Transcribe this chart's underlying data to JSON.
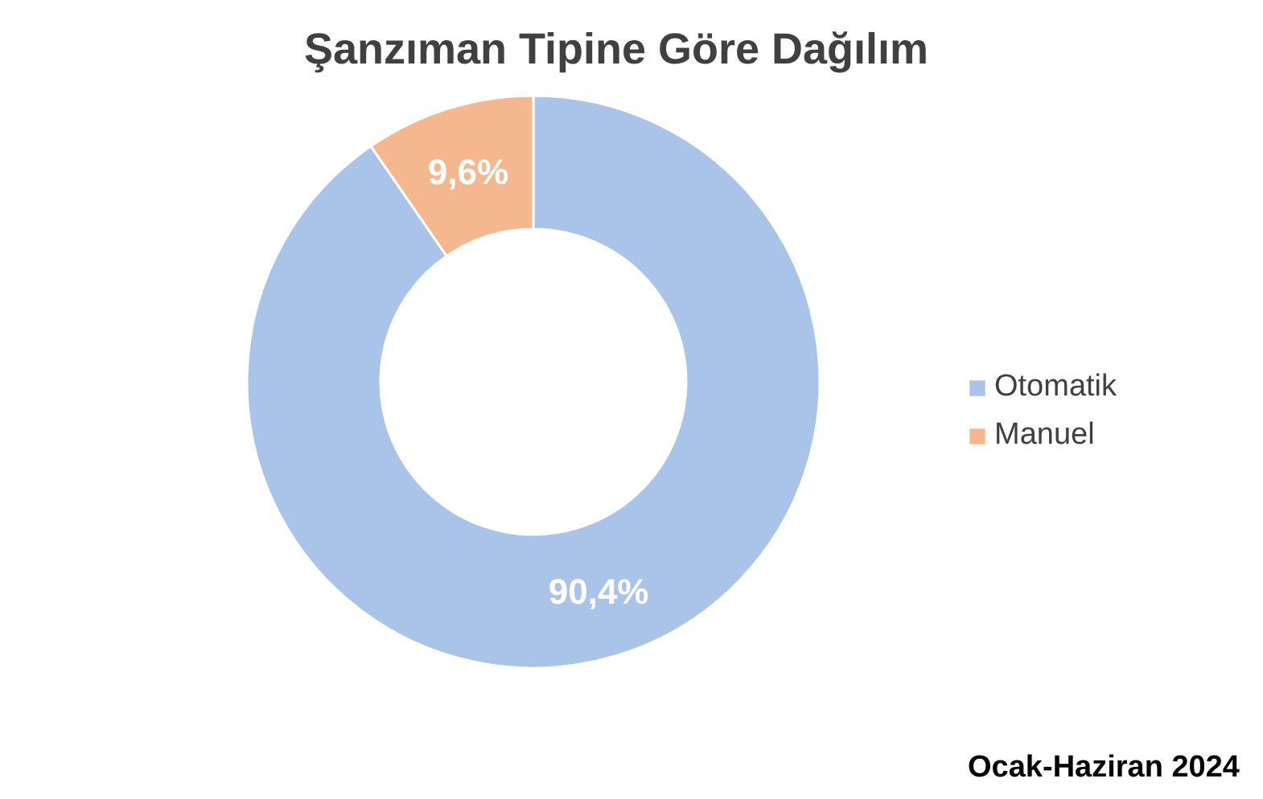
{
  "chart_data": {
    "type": "donut",
    "title": "Şanzıman Tipine Göre Dağılım",
    "categories": [
      "Otomatik",
      "Manuel"
    ],
    "values": [
      90.4,
      9.6
    ],
    "colors": [
      "#a9c4e8",
      "#f5b88e"
    ],
    "value_labels": [
      "90,4%",
      "9,6%"
    ],
    "legend": "right",
    "annotations": [
      "Ocak-Haziran 2024"
    ]
  }
}
